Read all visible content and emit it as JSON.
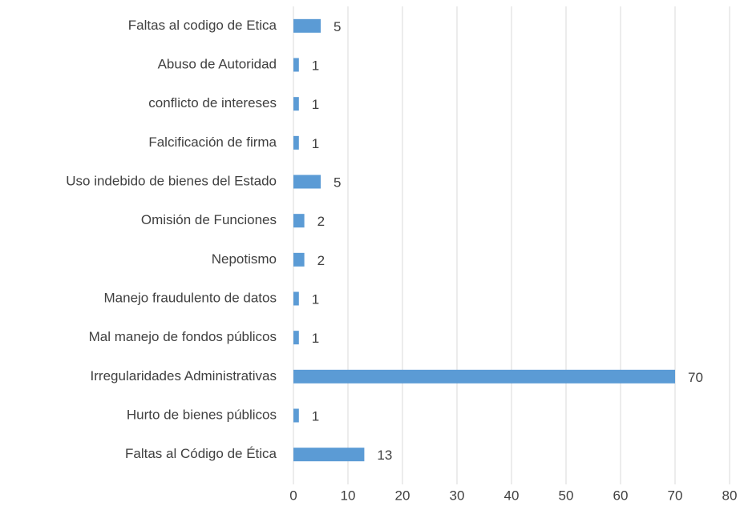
{
  "chart_data": {
    "type": "bar",
    "orientation": "horizontal",
    "categories": [
      "Faltas al codigo de Etica",
      "Abuso de Autoridad",
      "conflicto de intereses",
      "Falcificación de firma",
      "Uso indebido de bienes del Estado",
      "Omisión de Funciones",
      "Nepotismo",
      "Manejo fraudulento de datos",
      "Mal manejo de fondos públicos",
      "Irregularidades Administrativas",
      "Hurto de bienes públicos",
      "Faltas al Código de Ética"
    ],
    "values": [
      5,
      1,
      1,
      1,
      5,
      2,
      2,
      1,
      1,
      70,
      1,
      13
    ],
    "color": "#5b9bd5",
    "xlim": [
      0,
      80
    ],
    "xticks": [
      0,
      10,
      20,
      30,
      40,
      50,
      60,
      70,
      80
    ],
    "grid": true
  }
}
